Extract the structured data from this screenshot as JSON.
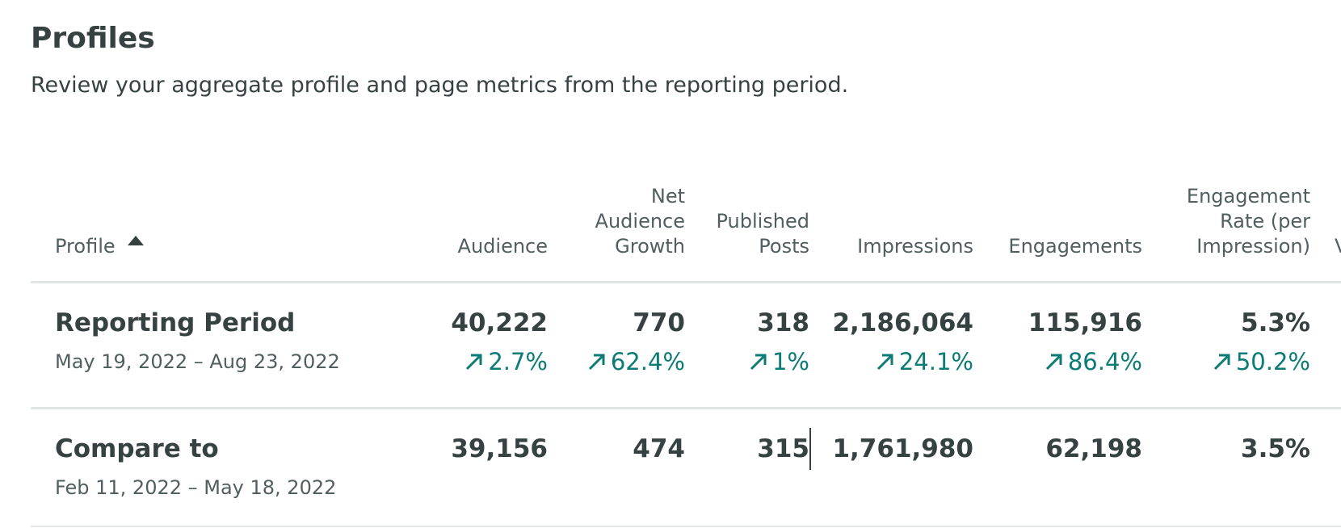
{
  "header": {
    "title": "Profiles",
    "subtitle": "Review your aggregate profile and page metrics from the reporting period."
  },
  "table": {
    "columns": {
      "profile": "Profile",
      "audience": "Audience",
      "net_audience_growth": "Net\nAudience\nGrowth",
      "published_posts": "Published\nPosts",
      "impressions": "Impressions",
      "engagements": "Engagements",
      "engagement_rate": "Engagement\nRate (per\nImpression)",
      "cut_off": "V"
    },
    "sort": {
      "column": "profile",
      "direction": "ascending",
      "icon": "sort-ascending-icon"
    },
    "rows": [
      {
        "label": "Reporting Period",
        "date_range": "May 19, 2022 – Aug 23, 2022",
        "values": {
          "audience": "40,222",
          "net_audience_growth": "770",
          "published_posts": "318",
          "impressions": "2,186,064",
          "engagements": "115,916",
          "engagement_rate": "5.3%"
        },
        "deltas": {
          "audience": "2.7%",
          "net_audience_growth": "62.4%",
          "published_posts": "1%",
          "impressions": "24.1%",
          "engagements": "86.4%",
          "engagement_rate": "50.2%"
        }
      },
      {
        "label": "Compare to",
        "date_range": "Feb 11, 2022 – May 18, 2022",
        "values": {
          "audience": "39,156",
          "net_audience_growth": "474",
          "published_posts": "315",
          "impressions": "1,761,980",
          "engagements": "62,198",
          "engagement_rate": "3.5%"
        }
      }
    ]
  },
  "colors": {
    "text_primary": "#364141",
    "text_secondary": "#515e5f",
    "positive_delta": "#0b7b76",
    "divider": "#e3e6e6"
  },
  "icons": {
    "delta_up": "arrow-up-right-icon"
  }
}
